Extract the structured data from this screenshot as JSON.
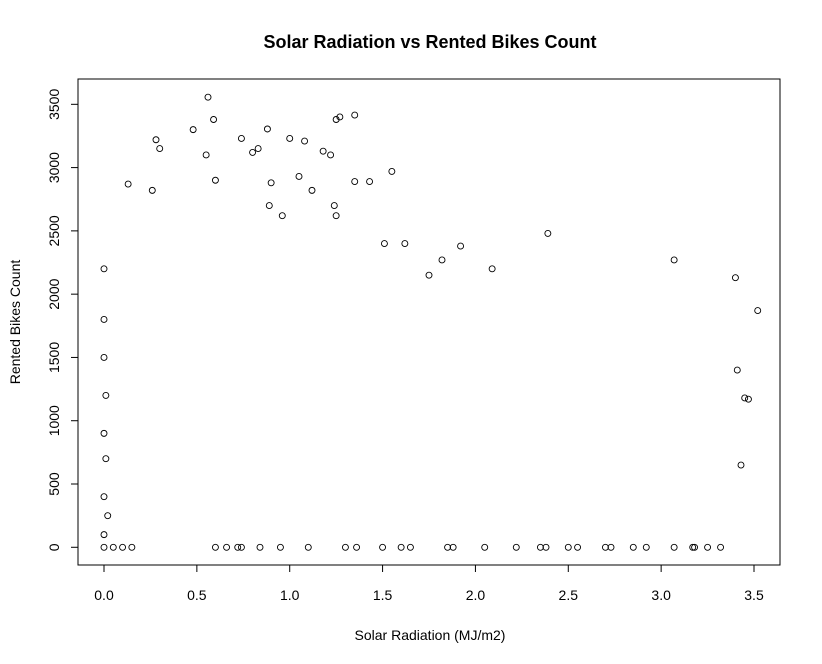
{
  "chart_data": {
    "type": "scatter",
    "title": "Solar Radiation vs Rented Bikes Count",
    "xlabel": "Solar Radiation (MJ/m2)",
    "ylabel": "Rented Bikes Count",
    "xlim": [
      -0.14,
      3.64
    ],
    "ylim": [
      -140,
      3700
    ],
    "xticks": [
      0,
      0.5,
      1,
      1.5,
      2,
      2.5,
      3,
      3.5
    ],
    "xtick_labels": [
      "0.0",
      "0.5",
      "1.0",
      "1.5",
      "2.0",
      "2.5",
      "3.0",
      "3.5"
    ],
    "yticks": [
      0,
      500,
      1000,
      1500,
      2000,
      2500,
      3000,
      3500
    ],
    "ytick_labels": [
      "0",
      "500",
      "1000",
      "1500",
      "2000",
      "2500",
      "3000",
      "3500"
    ],
    "grid": false,
    "legend": "none",
    "marker": "open-circle",
    "points": [
      [
        0.56,
        3556
      ],
      [
        0.59,
        3380
      ],
      [
        0.48,
        3300
      ],
      [
        0.88,
        3305
      ],
      [
        1.35,
        3415
      ],
      [
        1.27,
        3400
      ],
      [
        1.25,
        3380
      ],
      [
        0.28,
        3220
      ],
      [
        0.3,
        3150
      ],
      [
        0.74,
        3230
      ],
      [
        1.0,
        3230
      ],
      [
        1.08,
        3210
      ],
      [
        1.18,
        3130
      ],
      [
        1.22,
        3100
      ],
      [
        0.55,
        3100
      ],
      [
        0.83,
        3150
      ],
      [
        0.8,
        3120
      ],
      [
        1.55,
        2970
      ],
      [
        1.35,
        2890
      ],
      [
        1.43,
        2890
      ],
      [
        0.6,
        2900
      ],
      [
        0.9,
        2880
      ],
      [
        1.05,
        2930
      ],
      [
        1.12,
        2820
      ],
      [
        0.26,
        2820
      ],
      [
        0.13,
        2870
      ],
      [
        0.96,
        2620
      ],
      [
        0.89,
        2700
      ],
      [
        1.24,
        2700
      ],
      [
        1.25,
        2620
      ],
      [
        2.39,
        2480
      ],
      [
        3.07,
        2270
      ],
      [
        3.4,
        2130
      ],
      [
        3.52,
        1870
      ],
      [
        3.41,
        1400
      ],
      [
        3.45,
        1180
      ],
      [
        3.47,
        1170
      ],
      [
        3.43,
        650
      ],
      [
        1.51,
        2400
      ],
      [
        1.62,
        2400
      ],
      [
        1.92,
        2380
      ],
      [
        2.09,
        2200
      ],
      [
        1.82,
        2270
      ],
      [
        1.75,
        2150
      ],
      [
        0.0,
        2200
      ],
      [
        0.0,
        1800
      ],
      [
        0.0,
        1500
      ],
      [
        0.01,
        1200
      ],
      [
        0.0,
        900
      ],
      [
        0.01,
        700
      ],
      [
        0.0,
        400
      ],
      [
        0.02,
        250
      ],
      [
        0.0,
        100
      ],
      [
        0.0,
        0
      ],
      [
        0.05,
        0
      ],
      [
        0.1,
        0
      ],
      [
        0.15,
        0
      ],
      [
        0.6,
        0
      ],
      [
        0.66,
        0
      ],
      [
        0.72,
        0
      ],
      [
        0.74,
        0
      ],
      [
        0.84,
        0
      ],
      [
        0.95,
        0
      ],
      [
        1.1,
        0
      ],
      [
        1.3,
        0
      ],
      [
        1.36,
        0
      ],
      [
        1.5,
        0
      ],
      [
        1.6,
        0
      ],
      [
        1.65,
        0
      ],
      [
        1.85,
        0
      ],
      [
        1.88,
        0
      ],
      [
        2.05,
        0
      ],
      [
        2.22,
        0
      ],
      [
        2.35,
        0
      ],
      [
        2.38,
        0
      ],
      [
        2.5,
        0
      ],
      [
        2.55,
        0
      ],
      [
        2.7,
        0
      ],
      [
        2.73,
        0
      ],
      [
        2.85,
        0
      ],
      [
        2.92,
        0
      ],
      [
        3.07,
        0
      ],
      [
        3.17,
        0
      ],
      [
        3.18,
        0
      ],
      [
        3.25,
        0
      ],
      [
        3.32,
        0
      ]
    ]
  }
}
